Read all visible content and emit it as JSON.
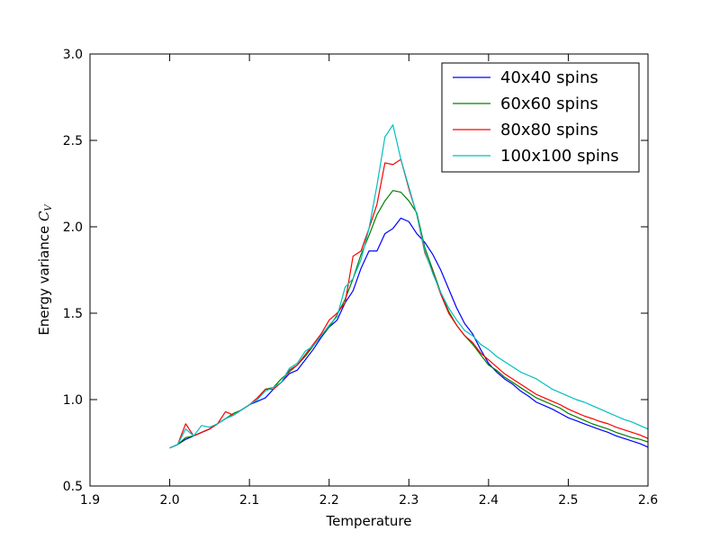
{
  "chart_data": {
    "type": "line",
    "title": "",
    "xlabel": "Temperature",
    "ylabel_text": "Energy variance ",
    "ylabel_math": "C",
    "ylabel_sub": "V",
    "xlim": [
      1.9,
      2.6
    ],
    "ylim": [
      0.5,
      3.0
    ],
    "xticks": [
      "1.9",
      "2.0",
      "2.1",
      "2.2",
      "2.3",
      "2.4",
      "2.5",
      "2.6"
    ],
    "yticks": [
      "0.5",
      "1.0",
      "1.5",
      "2.0",
      "2.5",
      "3.0"
    ],
    "grid": false,
    "legend_position": "top-right",
    "x": [
      2.0,
      2.01,
      2.02,
      2.03,
      2.04,
      2.05,
      2.06,
      2.07,
      2.08,
      2.09,
      2.1,
      2.11,
      2.12,
      2.13,
      2.14,
      2.15,
      2.16,
      2.17,
      2.18,
      2.19,
      2.2,
      2.21,
      2.22,
      2.23,
      2.24,
      2.25,
      2.26,
      2.27,
      2.28,
      2.29,
      2.3,
      2.31,
      2.32,
      2.33,
      2.34,
      2.35,
      2.36,
      2.37,
      2.38,
      2.39,
      2.4,
      2.41,
      2.42,
      2.43,
      2.44,
      2.45,
      2.46,
      2.47,
      2.48,
      2.49,
      2.5,
      2.51,
      2.52,
      2.53,
      2.54,
      2.55,
      2.56,
      2.57,
      2.58,
      2.59,
      2.6
    ],
    "series": [
      {
        "name": "40x40 spins",
        "color": "#0000ff",
        "values": [
          0.72,
          0.74,
          0.77,
          0.79,
          0.81,
          0.83,
          0.86,
          0.89,
          0.91,
          0.94,
          0.97,
          0.99,
          1.01,
          1.06,
          1.1,
          1.15,
          1.17,
          1.23,
          1.29,
          1.36,
          1.42,
          1.46,
          1.56,
          1.63,
          1.76,
          1.86,
          1.86,
          1.96,
          1.99,
          2.05,
          2.03,
          1.96,
          1.91,
          1.84,
          1.75,
          1.64,
          1.53,
          1.44,
          1.38,
          1.29,
          1.21,
          1.16,
          1.12,
          1.09,
          1.05,
          1.02,
          0.985,
          0.965,
          0.945,
          0.92,
          0.895,
          0.878,
          0.86,
          0.843,
          0.826,
          0.81,
          0.79,
          0.775,
          0.76,
          0.745,
          0.725
        ]
      },
      {
        "name": "60x60 spins",
        "color": "#008000",
        "values": [
          0.72,
          0.74,
          0.78,
          0.79,
          0.81,
          0.83,
          0.86,
          0.89,
          0.92,
          0.94,
          0.97,
          1.0,
          1.06,
          1.07,
          1.12,
          1.16,
          1.2,
          1.25,
          1.31,
          1.37,
          1.42,
          1.49,
          1.58,
          1.7,
          1.84,
          1.95,
          2.07,
          2.15,
          2.21,
          2.2,
          2.15,
          2.08,
          1.88,
          1.75,
          1.62,
          1.51,
          1.43,
          1.37,
          1.32,
          1.26,
          1.2,
          1.17,
          1.13,
          1.1,
          1.07,
          1.04,
          1.01,
          0.99,
          0.97,
          0.95,
          0.92,
          0.9,
          0.88,
          0.86,
          0.845,
          0.83,
          0.81,
          0.795,
          0.78,
          0.77,
          0.755
        ]
      },
      {
        "name": "80x80 spins",
        "color": "#ff0000",
        "values": [
          0.72,
          0.74,
          0.86,
          0.79,
          0.81,
          0.83,
          0.86,
          0.93,
          0.91,
          0.94,
          0.97,
          1.01,
          1.06,
          1.06,
          1.1,
          1.17,
          1.2,
          1.26,
          1.32,
          1.38,
          1.46,
          1.5,
          1.56,
          1.83,
          1.86,
          1.99,
          2.13,
          2.37,
          2.36,
          2.39,
          2.22,
          2.07,
          1.85,
          1.74,
          1.61,
          1.5,
          1.43,
          1.37,
          1.33,
          1.27,
          1.23,
          1.19,
          1.15,
          1.12,
          1.09,
          1.06,
          1.03,
          1.01,
          0.99,
          0.97,
          0.945,
          0.925,
          0.905,
          0.89,
          0.873,
          0.86,
          0.84,
          0.825,
          0.81,
          0.795,
          0.775
        ]
      },
      {
        "name": "100x100 spins",
        "color": "#00bfbf",
        "values": [
          0.72,
          0.74,
          0.83,
          0.79,
          0.85,
          0.84,
          0.86,
          0.89,
          0.91,
          0.94,
          0.97,
          1.0,
          1.05,
          1.07,
          1.1,
          1.18,
          1.21,
          1.28,
          1.31,
          1.37,
          1.43,
          1.48,
          1.65,
          1.7,
          1.81,
          1.99,
          2.24,
          2.52,
          2.59,
          2.39,
          2.23,
          2.07,
          1.86,
          1.73,
          1.62,
          1.53,
          1.46,
          1.4,
          1.37,
          1.32,
          1.29,
          1.25,
          1.22,
          1.19,
          1.16,
          1.14,
          1.12,
          1.09,
          1.06,
          1.04,
          1.02,
          1.0,
          0.985,
          0.965,
          0.945,
          0.925,
          0.905,
          0.885,
          0.87,
          0.85,
          0.83
        ]
      }
    ]
  }
}
